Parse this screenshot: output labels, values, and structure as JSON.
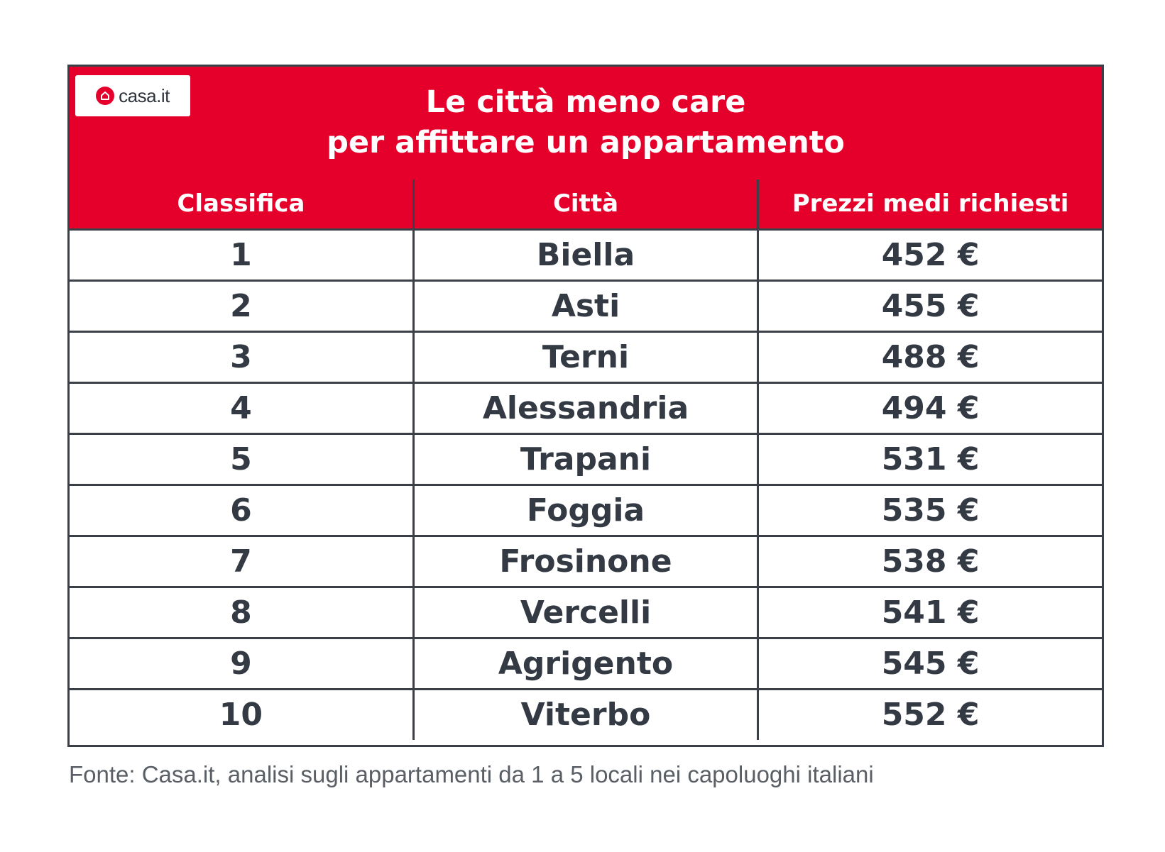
{
  "brand": {
    "logo_text": "casa.it",
    "logo_icon": "house-icon",
    "accent_color": "#e4002b",
    "text_color": "#343a44"
  },
  "title_lines": [
    "Le città meno care",
    "per affittare un appartamento"
  ],
  "chart_data": {
    "type": "table",
    "columns": [
      "Classifica",
      "Città",
      "Prezzi medi richiesti"
    ],
    "rows": [
      [
        "1",
        "Biella",
        "452 €"
      ],
      [
        "2",
        "Asti",
        "455 €"
      ],
      [
        "3",
        "Terni",
        "488 €"
      ],
      [
        "4",
        "Alessandria",
        "494 €"
      ],
      [
        "5",
        "Trapani",
        "531 €"
      ],
      [
        "6",
        "Foggia",
        "535 €"
      ],
      [
        "7",
        "Frosinone",
        "538 €"
      ],
      [
        "8",
        "Vercelli",
        "541 €"
      ],
      [
        "9",
        "Agrigento",
        "545 €"
      ],
      [
        "10",
        "Viterbo",
        "552 €"
      ]
    ]
  },
  "footnote": "Fonte: Casa.it, analisi sugli appartamenti da 1 a 5 locali nei capoluoghi italiani"
}
